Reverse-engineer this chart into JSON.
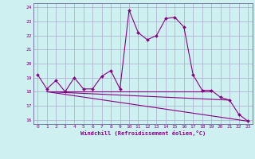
{
  "title": "",
  "xlabel": "Windchill (Refroidissement éolien,°C)",
  "bg_color": "#cef0f0",
  "grid_color": "#aaaacc",
  "line_color": "#880088",
  "spine_color": "#666699",
  "xlim": [
    -0.5,
    23.5
  ],
  "ylim": [
    15.7,
    24.3
  ],
  "yticks": [
    16,
    17,
    18,
    19,
    20,
    21,
    22,
    23,
    24
  ],
  "xticks": [
    0,
    1,
    2,
    3,
    4,
    5,
    6,
    7,
    8,
    9,
    10,
    11,
    12,
    13,
    14,
    15,
    16,
    17,
    18,
    19,
    20,
    21,
    22,
    23
  ],
  "series1_x": [
    0,
    1,
    2,
    3,
    4,
    5,
    6,
    7,
    8,
    9,
    10,
    11,
    12,
    13,
    14,
    15,
    16,
    17,
    18,
    19,
    20,
    21,
    22,
    23
  ],
  "series1_y": [
    19.2,
    18.2,
    18.8,
    18.0,
    19.0,
    18.2,
    18.2,
    19.1,
    19.5,
    18.2,
    23.8,
    22.2,
    21.7,
    22.0,
    23.2,
    23.3,
    22.6,
    19.2,
    18.1,
    18.1,
    17.6,
    17.4,
    16.4,
    15.9
  ],
  "series2_x": [
    1,
    19
  ],
  "series2_y": [
    18.0,
    18.0
  ],
  "series3_x": [
    1,
    23
  ],
  "series3_y": [
    18.0,
    15.9
  ],
  "series4_x": [
    1,
    21
  ],
  "series4_y": [
    18.0,
    17.4
  ]
}
